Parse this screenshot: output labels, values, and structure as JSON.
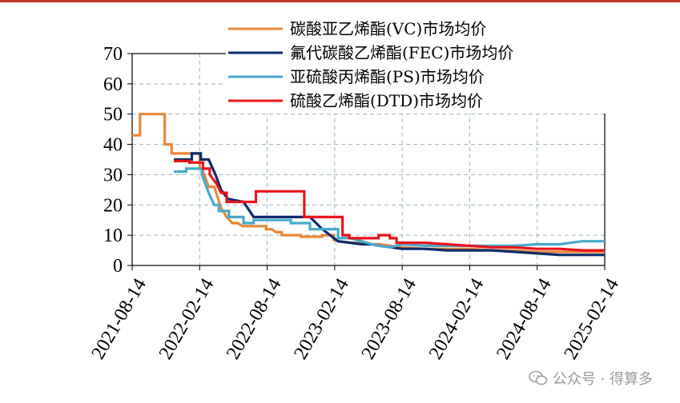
{
  "colors": {
    "top_bar": "#c0392b",
    "grid": "#9db3cc",
    "axis": "#000000"
  },
  "watermark": {
    "text": "公众号 · 得算多",
    "icon": "wechat-icon"
  },
  "chart_data": {
    "type": "line",
    "title": "",
    "xlabel": "",
    "ylabel": "",
    "ylim": [
      0,
      70
    ],
    "yticks": [
      0,
      10,
      20,
      30,
      40,
      50,
      60,
      70
    ],
    "x_range": [
      0,
      42
    ],
    "x_unit": "months since 2021-08-14",
    "xticks": [
      {
        "x": 0,
        "label": "2021-08-14"
      },
      {
        "x": 6,
        "label": "2022-02-14"
      },
      {
        "x": 12,
        "label": "2022-08-14"
      },
      {
        "x": 18,
        "label": "2023-02-14"
      },
      {
        "x": 24,
        "label": "2023-08-14"
      },
      {
        "x": 30,
        "label": "2024-02-14"
      },
      {
        "x": 36,
        "label": "2024-08-14"
      },
      {
        "x": 42,
        "label": "2025-02-14"
      }
    ],
    "grid": true,
    "legend_position": "top-right",
    "series": [
      {
        "name": "碳酸亚乙烯酯(VC)市场均价",
        "color": "#e8873a",
        "x": [
          0,
          0.7,
          0.7,
          2.9,
          2.9,
          3.5,
          3.5,
          6.0,
          6.0,
          6.2,
          6.8,
          7.3,
          7.9,
          8.4,
          8.9,
          9.4,
          9.8,
          10.3,
          10.8,
          11.9,
          11.9,
          12.4,
          12.8,
          13.3,
          13.3,
          14.1,
          14.1,
          15.0,
          15.0,
          16.9,
          16.9,
          17.9,
          17.9,
          18.3,
          19.4,
          20.4,
          21.3,
          22.0,
          23.0,
          24.0,
          26.0,
          28.0,
          30.0,
          32.0,
          34.0,
          36.0,
          38.0,
          40.0,
          42.0
        ],
        "values": [
          43,
          43,
          50,
          50,
          40,
          40,
          37,
          37,
          32,
          32,
          26,
          26,
          19,
          16,
          14,
          14,
          13,
          13,
          13,
          13,
          12,
          12,
          11,
          11,
          10,
          10,
          10,
          10,
          9.5,
          9.5,
          10,
          10,
          8.5,
          8,
          7.5,
          7.5,
          7,
          7,
          6.5,
          6,
          5.5,
          5.5,
          5.5,
          5,
          5,
          4.5,
          4.5,
          4.5,
          4.5
        ]
      },
      {
        "name": "氟代碳酸乙烯酯(FEC)市场均价",
        "color": "#0d2b6b",
        "x": [
          3.7,
          5.3,
          5.3,
          6.1,
          6.1,
          6.8,
          7.4,
          7.9,
          8.5,
          8.5,
          9.9,
          9.9,
          10.8,
          10.8,
          15.8,
          15.8,
          16.9,
          16.9,
          18.3,
          19.4,
          20.4,
          21.3,
          22.0,
          23.0,
          24.0,
          26.0,
          28.0,
          30.0,
          32.0,
          34.0,
          36.0,
          38.0,
          40.0,
          42.0
        ],
        "values": [
          35,
          35,
          37,
          37,
          35,
          35,
          30,
          25,
          22,
          22,
          21,
          21,
          16,
          16,
          16,
          16,
          12,
          12,
          8,
          7.5,
          7,
          7,
          6.5,
          6,
          5.5,
          5.5,
          5,
          5,
          5,
          4.5,
          4,
          3.5,
          3.5,
          3.5
        ]
      },
      {
        "name": "亚硫酸丙烯酯(PS)市场均价",
        "color": "#48aacb",
        "x": [
          3.7,
          4.8,
          4.8,
          5.1,
          5.1,
          6.2,
          6.2,
          6.8,
          7.3,
          7.7,
          7.7,
          8.6,
          8.6,
          9.9,
          9.9,
          10.8,
          10.8,
          14.1,
          14.1,
          15.8,
          15.8,
          18.3,
          18.3,
          19.4,
          20.4,
          21.3,
          22.0,
          23.0,
          24.0,
          26.0,
          28.0,
          30.0,
          32.0,
          34.0,
          36.0,
          38.0,
          39.0,
          40.0,
          42.0
        ],
        "values": [
          31,
          31,
          32,
          32,
          32,
          32,
          30,
          24,
          20,
          20,
          18,
          18,
          16,
          16,
          14,
          14,
          15,
          15,
          14,
          14,
          12,
          12,
          9,
          9,
          8,
          7,
          6.5,
          6,
          7,
          6.5,
          6.5,
          6.5,
          6.5,
          6.5,
          7,
          7,
          7.5,
          8,
          8
        ]
      },
      {
        "name": "硫酸乙烯酯(DTD)市场均价",
        "color": "#e8141b",
        "x": [
          3.7,
          5.1,
          5.1,
          6.3,
          6.3,
          6.9,
          6.9,
          7.5,
          7.9,
          8.4,
          8.4,
          11.0,
          11.0,
          15.3,
          15.3,
          18.7,
          18.7,
          19.3,
          19.3,
          21.9,
          21.9,
          22.9,
          22.9,
          23.5,
          23.5,
          26.0,
          28.0,
          30.0,
          32.0,
          34.0,
          36.0,
          38.0,
          40.0,
          42.0
        ],
        "values": [
          34.5,
          34.5,
          34,
          34,
          32,
          32,
          30,
          27,
          24,
          24,
          21,
          21,
          24.5,
          24.5,
          16,
          16,
          10,
          10,
          9,
          9,
          10,
          10,
          9,
          9,
          7.5,
          7.5,
          7,
          6.5,
          6,
          6,
          5.5,
          5.5,
          5,
          5
        ]
      }
    ]
  }
}
